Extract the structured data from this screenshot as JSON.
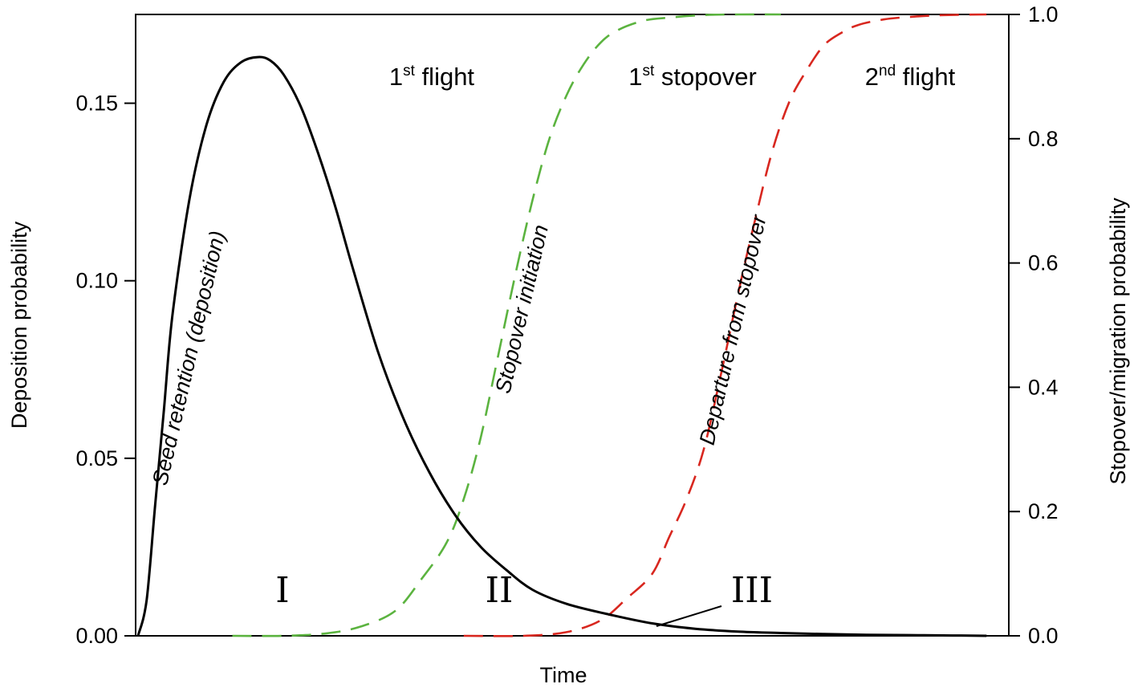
{
  "chart_data": {
    "type": "line",
    "title": "",
    "xlabel": "Time",
    "ylabel_left": "Deposition probability",
    "ylabel_right": "Stopover/migration probability",
    "x_range": [
      0,
      1
    ],
    "ylim_left": [
      0,
      0.175
    ],
    "ylim_right": [
      0,
      1.0
    ],
    "yticks_left": [
      "0.00",
      "0.05",
      "0.10",
      "0.15"
    ],
    "yticks_left_values": [
      0,
      0.05,
      0.1,
      0.15
    ],
    "yticks_right": [
      "0.0",
      "0.2",
      "0.4",
      "0.6",
      "0.8",
      "1.0"
    ],
    "yticks_right_values": [
      0,
      0.2,
      0.4,
      0.6,
      0.8,
      1.0
    ],
    "grid": false,
    "series": [
      {
        "key": "seed",
        "axis": "left",
        "style": "solid",
        "color": "#000000",
        "x": [
          0,
          0.01,
          0.02,
          0.03,
          0.04,
          0.06,
          0.08,
          0.1,
          0.12,
          0.14,
          0.1545,
          0.17,
          0.19,
          0.21,
          0.23,
          0.25,
          0.28,
          0.31,
          0.34,
          0.37,
          0.4,
          0.43,
          0.46,
          0.5,
          0.55,
          0.6,
          0.65,
          0.7,
          0.75,
          0.8,
          0.85,
          0.9,
          0.95,
          0.99
        ],
        "values": [
          0,
          0.01,
          0.037,
          0.063,
          0.09,
          0.123,
          0.144,
          0.156,
          0.1615,
          0.163,
          0.162,
          0.158,
          0.149,
          0.136,
          0.121,
          0.104,
          0.08,
          0.061,
          0.046,
          0.034,
          0.025,
          0.0185,
          0.013,
          0.009,
          0.006,
          0.0035,
          0.002,
          0.0012,
          0.0008,
          0.0005,
          0.0003,
          0.0002,
          0.0001,
          0.0
        ]
      },
      {
        "key": "initiation",
        "axis": "right",
        "style": "dashed",
        "color": "#5bb33f",
        "x": [
          0.11,
          0.17,
          0.22,
          0.26,
          0.3,
          0.33,
          0.36,
          0.38,
          0.4,
          0.42,
          0.44,
          0.46,
          0.48,
          0.5,
          0.52,
          0.54,
          0.56,
          0.59,
          0.62,
          0.66,
          0.7,
          0.75
        ],
        "values": [
          0.0,
          0.0,
          0.004,
          0.015,
          0.04,
          0.09,
          0.15,
          0.22,
          0.32,
          0.45,
          0.58,
          0.7,
          0.8,
          0.87,
          0.92,
          0.955,
          0.975,
          0.99,
          0.995,
          0.999,
          1.0,
          1.0
        ]
      },
      {
        "key": "departure",
        "axis": "right",
        "style": "dashed",
        "color": "#d8271f",
        "x": [
          0.38,
          0.45,
          0.5,
          0.54,
          0.57,
          0.6,
          0.62,
          0.64,
          0.66,
          0.68,
          0.7,
          0.72,
          0.74,
          0.76,
          0.78,
          0.8,
          0.82,
          0.84,
          0.87,
          0.9,
          0.94,
          0.99
        ],
        "values": [
          0.0,
          0.0,
          0.006,
          0.025,
          0.06,
          0.1,
          0.16,
          0.22,
          0.3,
          0.42,
          0.55,
          0.67,
          0.78,
          0.86,
          0.91,
          0.95,
          0.97,
          0.983,
          0.992,
          0.996,
          0.999,
          1.0
        ]
      }
    ],
    "region_labels": [
      {
        "key": "r1",
        "text": "1",
        "sup": "st",
        "rest": " flight",
        "x": 0.345
      },
      {
        "key": "r2",
        "text": "1",
        "sup": "st",
        "rest": " stopover",
        "x": 0.655
      },
      {
        "key": "r3",
        "text": "2",
        "sup": "nd",
        "rest": " flight",
        "x": 0.93
      }
    ],
    "curve_labels": {
      "seed": "Seed retention (deposition)",
      "initiation": "Stopover initiation",
      "departure": "Departure from stopover"
    },
    "roman_labels": [
      "I",
      "II",
      "III"
    ]
  }
}
